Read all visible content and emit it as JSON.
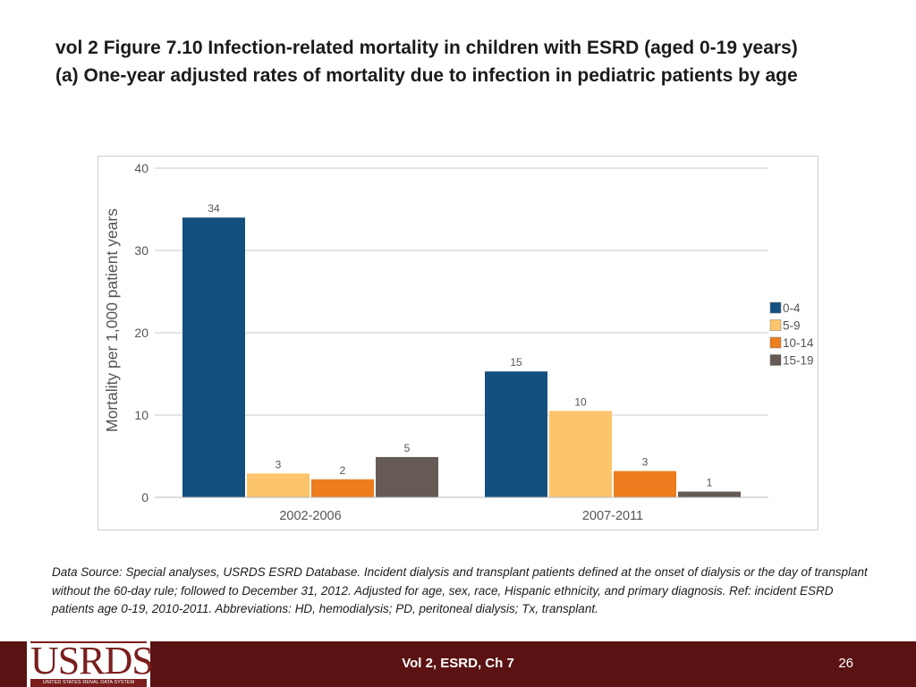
{
  "slide": {
    "title_line1": "vol 2 Figure 7.10 Infection-related mortality in children with ESRD (aged 0-19 years)",
    "title_line2": "(a) One-year adjusted rates of mortality due to infection in pediatric patients by age",
    "source_note": "Data Source: Special analyses, USRDS ESRD Database. Incident dialysis and transplant patients defined at the onset of dialysis or the day of transplant without the 60-day rule; followed to December 31, 2012. Adjusted for age, sex, race, Hispanic ethnicity, and primary diagnosis. Ref: incident ESRD patients age 0-19, 2010-2011. Abbreviations: HD, hemodialysis; PD, peritoneal dialysis; Tx, transplant."
  },
  "footer": {
    "label": "Vol 2, ESRD, Ch 7",
    "page_number": "26",
    "logo_text": "USRDS",
    "logo_subtitle": "UNITED STATES RENAL DATA SYSTEM"
  },
  "chart_data": {
    "type": "bar",
    "title": "",
    "xlabel": "",
    "ylabel": "Mortality per 1,000 patient years",
    "ylim": [
      0,
      40
    ],
    "yticks": [
      0,
      10,
      20,
      30,
      40
    ],
    "grid": true,
    "legend_position": "right",
    "categories": [
      "2002-2006",
      "2007-2011"
    ],
    "series": [
      {
        "name": "0-4",
        "color": "#14507f",
        "values": [
          34,
          15.3
        ],
        "labels": [
          "34",
          "15"
        ]
      },
      {
        "name": "5-9",
        "color": "#fcc56b",
        "values": [
          2.9,
          10.5
        ],
        "labels": [
          "3",
          "10"
        ]
      },
      {
        "name": "10-14",
        "color": "#ed7d1f",
        "values": [
          2.2,
          3.2
        ],
        "labels": [
          "2",
          "3"
        ]
      },
      {
        "name": "15-19",
        "color": "#655b54",
        "values": [
          4.9,
          0.7
        ],
        "labels": [
          "5",
          "1"
        ]
      }
    ]
  }
}
